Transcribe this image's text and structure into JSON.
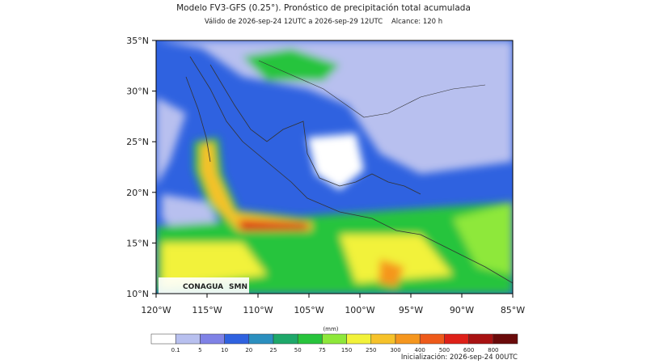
{
  "header": {
    "title": "Modelo FV3-GFS (0.25°). Pronóstico de precipitación total acumulada",
    "subtitle": "Válido de 2026-sep-24 12UTC a 2026-sep-29 12UTC    Alcance: 120 h"
  },
  "map": {
    "lat_labels": [
      "35°N",
      "30°N",
      "25°N",
      "20°N",
      "15°N",
      "10°N"
    ],
    "lon_labels": [
      "120°W",
      "115°W",
      "110°W",
      "105°W",
      "100°W",
      "95°W",
      "90°W",
      "85°W"
    ],
    "logos": [
      "CONAGUA",
      "SMN"
    ]
  },
  "colorbar": {
    "unit": "(mm)",
    "labels": [
      "0.1",
      "5",
      "10",
      "20",
      "25",
      "50",
      "75",
      "150",
      "250",
      "300",
      "400",
      "500",
      "600",
      "800"
    ],
    "colors": [
      "#ffffff",
      "#b8c0ef",
      "#7f82e6",
      "#2f62e0",
      "#2b8fbf",
      "#1ea86a",
      "#28c43c",
      "#8ee83a",
      "#f2f23a",
      "#f6c22a",
      "#f5961e",
      "#ee5a1a",
      "#de2018",
      "#a81212",
      "#6a0a0a"
    ]
  },
  "footer": {
    "init": "Inicialización: 2026-sep-24 00UTC"
  }
}
